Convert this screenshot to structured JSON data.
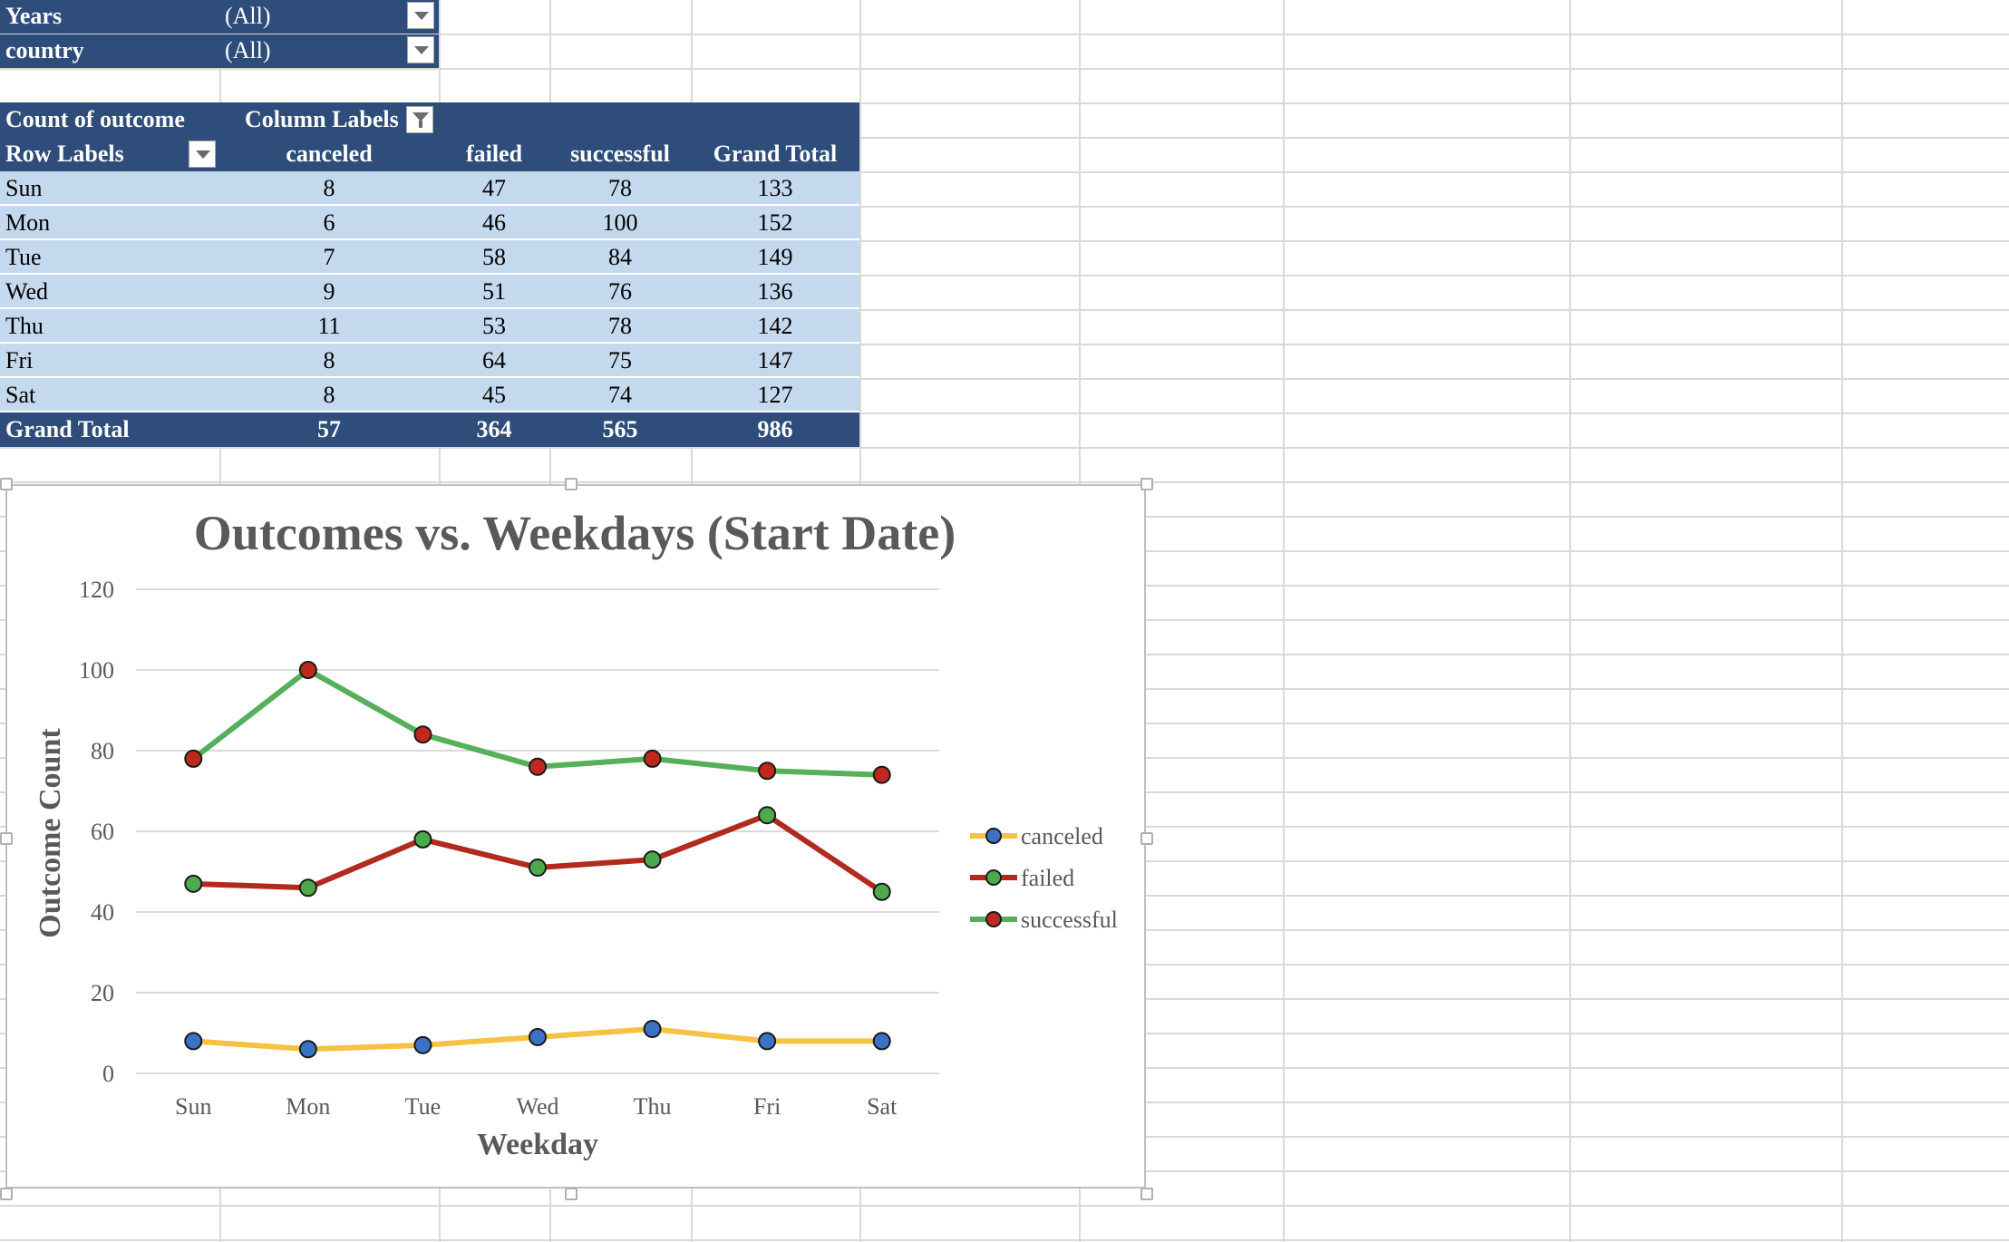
{
  "filters": [
    {
      "label": "Years",
      "value": "(All)"
    },
    {
      "label": "country",
      "value": "(All)"
    }
  ],
  "pivot": {
    "corner_label": "Count of outcome",
    "column_labels_header": "Column Labels",
    "row_labels_header": "Row Labels",
    "columns": [
      "canceled",
      "failed",
      "successful",
      "Grand Total"
    ],
    "rows": [
      {
        "label": "Sun",
        "values": [
          "8",
          "47",
          "78",
          "133"
        ]
      },
      {
        "label": "Mon",
        "values": [
          "6",
          "46",
          "100",
          "152"
        ]
      },
      {
        "label": "Tue",
        "values": [
          "7",
          "58",
          "84",
          "149"
        ]
      },
      {
        "label": "Wed",
        "values": [
          "9",
          "51",
          "76",
          "136"
        ]
      },
      {
        "label": "Thu",
        "values": [
          "11",
          "53",
          "78",
          "142"
        ]
      },
      {
        "label": "Fri",
        "values": [
          "8",
          "64",
          "75",
          "147"
        ]
      },
      {
        "label": "Sat",
        "values": [
          "8",
          "45",
          "74",
          "127"
        ]
      }
    ],
    "grand_total": {
      "label": "Grand Total",
      "values": [
        "57",
        "364",
        "565",
        "986"
      ]
    }
  },
  "colors": {
    "header_bg": "#2e4d7a",
    "row_bg": "#c5d9ee",
    "canceled_line": "#f5c242",
    "canceled_marker": "#3a72c4",
    "failed_line": "#b02a1e",
    "failed_marker": "#4caa4c",
    "successful_line": "#55b05a",
    "successful_marker": "#c0281e"
  },
  "chart_data": {
    "type": "line",
    "title": "Outcomes vs. Weekdays (Start Date)",
    "xlabel": "Weekday",
    "ylabel": "Outcome Count",
    "categories": [
      "Sun",
      "Mon",
      "Tue",
      "Wed",
      "Thu",
      "Fri",
      "Sat"
    ],
    "ylim": [
      0,
      120
    ],
    "yticks": [
      0,
      20,
      40,
      60,
      80,
      100,
      120
    ],
    "grid": true,
    "legend_position": "right",
    "series": [
      {
        "name": "canceled",
        "values": [
          8,
          6,
          7,
          9,
          11,
          8,
          8
        ],
        "line_color": "#f5c242",
        "marker_color": "#3a72c4"
      },
      {
        "name": "failed",
        "values": [
          47,
          46,
          58,
          51,
          53,
          64,
          45
        ],
        "line_color": "#b02a1e",
        "marker_color": "#4caa4c"
      },
      {
        "name": "successful",
        "values": [
          78,
          100,
          84,
          76,
          78,
          75,
          74
        ],
        "line_color": "#55b05a",
        "marker_color": "#c0281e"
      }
    ]
  }
}
